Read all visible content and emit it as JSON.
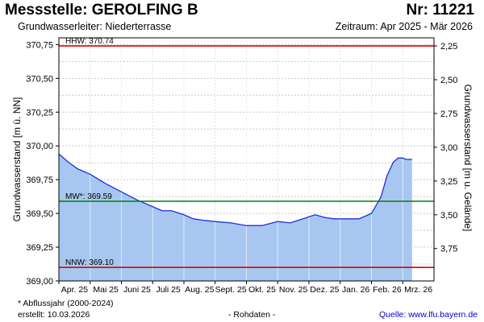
{
  "header": {
    "title": "Messstelle: GEROLFING B",
    "number": "Nr: 11221",
    "aquifer": "Grundwasserleiter:   Niederterrasse",
    "period": "Zeitraum: Apr 2025 - Mär 2026"
  },
  "footer": {
    "note": "* Abflussjahr (2000-2024)",
    "created": "erstellt:  10.03.2026",
    "raw": "- Rohdaten -",
    "source": "Quelle: www.lfu.bayern.de"
  },
  "colors": {
    "fill": "#a7c7f0",
    "line": "#1f2fd6",
    "hhw": "#e00000",
    "nnw": "#e00000",
    "mw": "#008000"
  },
  "chart_data": {
    "type": "area",
    "ylabel": "Grundwasserstand [m ü. NN]",
    "ylabel_right": "Grundwasserstand [m u. Gelände]",
    "ylim": [
      369.0,
      370.8
    ],
    "yticks": [
      "370,75",
      "370,50",
      "370,25",
      "370,00",
      "369,75",
      "369,50",
      "369,25",
      "369,00"
    ],
    "ytick_values": [
      370.75,
      370.5,
      370.25,
      370.0,
      369.75,
      369.5,
      369.25,
      369.0
    ],
    "yticks_right": [
      "2,25",
      "2,50",
      "2,75",
      "3,00",
      "3,25",
      "3,50",
      "3,75"
    ],
    "ytick_right_values": [
      370.74,
      370.49,
      370.24,
      369.99,
      369.74,
      369.49,
      369.24
    ],
    "xlim": [
      0,
      12
    ],
    "x_months": [
      "Apr. 25",
      "Mai 25",
      "Juni 25",
      "Juli 25",
      "Aug. 25",
      "Sept. 25",
      "Okt. 25",
      "Nov. 25",
      "Dez. 25",
      "Jan. 26",
      "Feb. 26",
      "Mrz. 26"
    ],
    "grid": true,
    "reference_lines": [
      {
        "label": "HHW: 370.74",
        "value": 370.74,
        "kind": "hhw"
      },
      {
        "label": "MW*: 369.59",
        "value": 369.59,
        "kind": "mw"
      },
      {
        "label": "NNW: 369.10",
        "value": 369.1,
        "kind": "nnw"
      }
    ],
    "x": [
      0,
      0.3,
      0.6,
      1.0,
      1.5,
      2.0,
      2.5,
      3.0,
      3.3,
      3.6,
      4.0,
      4.3,
      4.6,
      5.0,
      5.5,
      6.0,
      6.5,
      7.0,
      7.4,
      7.8,
      8.2,
      8.5,
      8.8,
      9.2,
      9.6,
      10.0,
      10.3,
      10.5,
      10.7,
      10.85,
      11.0,
      11.1,
      11.3
    ],
    "values": [
      369.94,
      369.88,
      369.83,
      369.79,
      369.72,
      369.66,
      369.6,
      369.55,
      369.52,
      369.52,
      369.49,
      369.46,
      369.45,
      369.44,
      369.43,
      369.41,
      369.41,
      369.44,
      369.43,
      369.46,
      369.49,
      369.47,
      369.46,
      369.46,
      369.46,
      369.5,
      369.62,
      369.78,
      369.88,
      369.91,
      369.91,
      369.9,
      369.9
    ]
  }
}
